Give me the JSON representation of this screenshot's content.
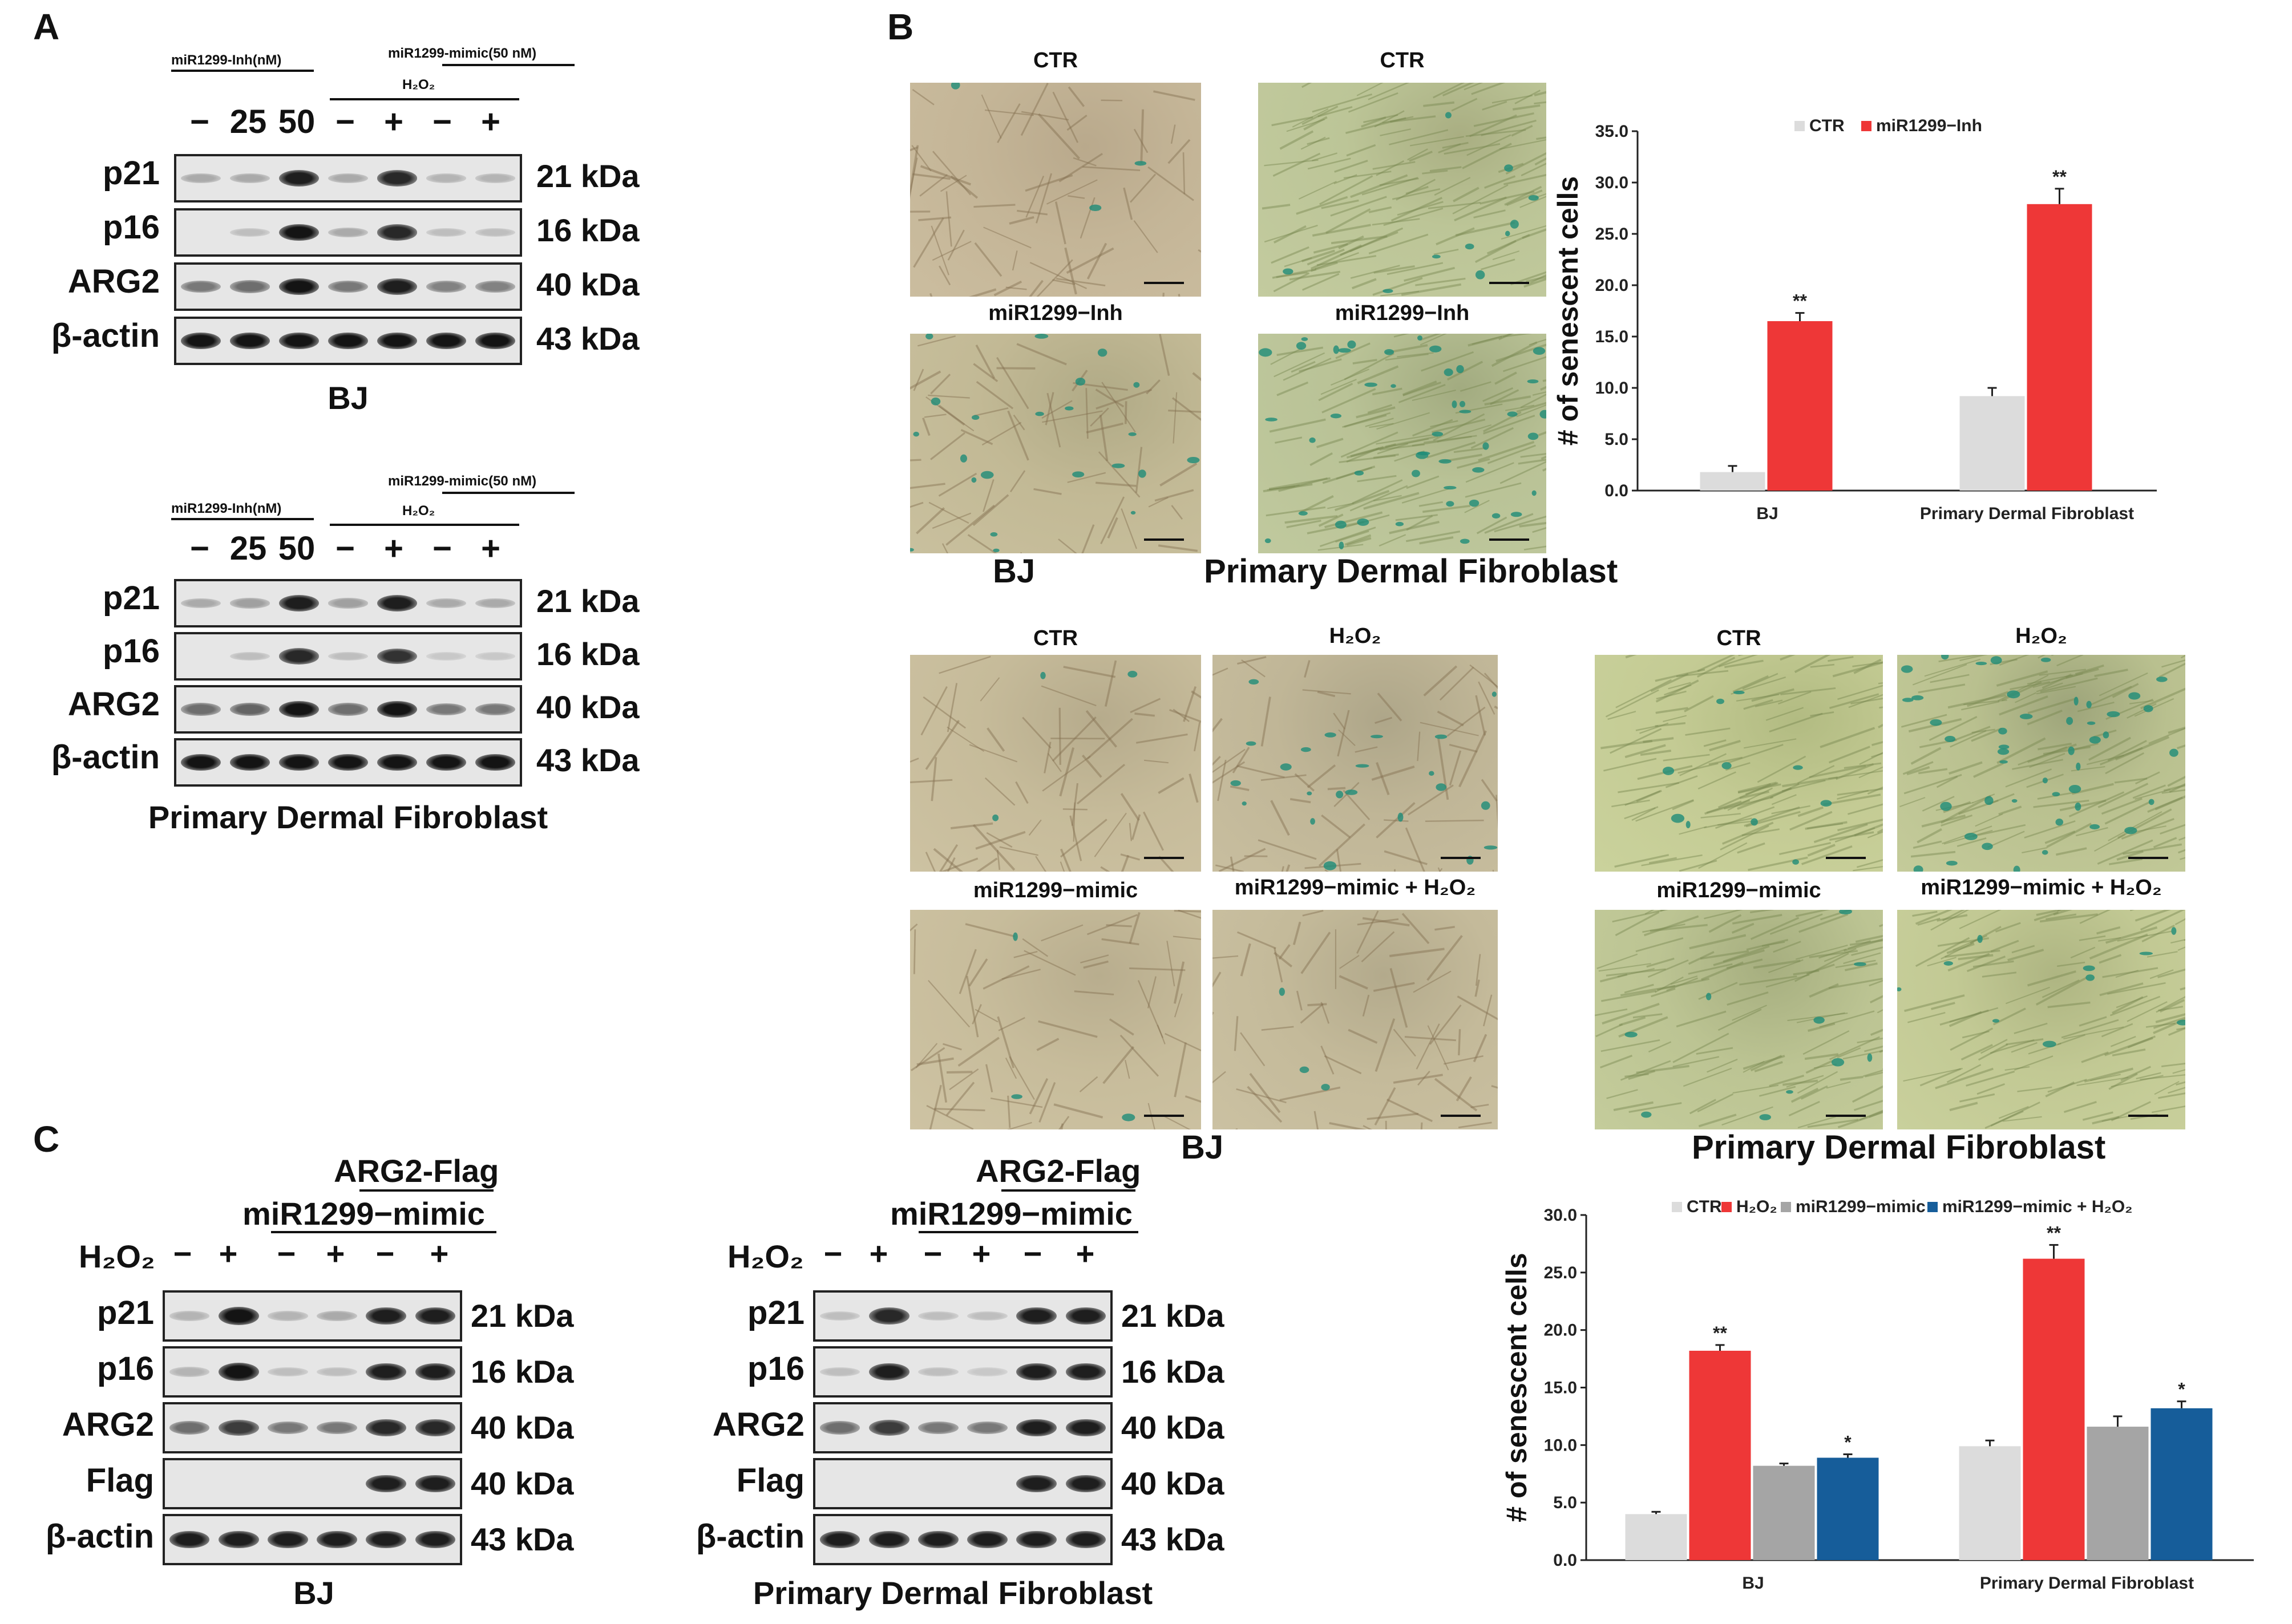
{
  "panels": {
    "a": "A",
    "b": "B",
    "c": "C"
  },
  "panelA": {
    "inh_label": "miR1299-Inh(nM)",
    "mimic_label": "miR1299-mimic(50 nM)",
    "h2o2_label": "H₂O₂",
    "lane_labels": [
      "−",
      "25",
      "50",
      "−",
      "+",
      "−",
      "+"
    ],
    "proteins": [
      {
        "name": "p21",
        "kda": "21 kDa"
      },
      {
        "name": "p16",
        "kda": "16 kDa"
      },
      {
        "name": "ARG2",
        "kda": "40 kDa"
      },
      {
        "name": "β-actin",
        "kda": "43 kDa"
      }
    ],
    "cell_lines": [
      "BJ",
      "Primary Dermal Fibroblast"
    ],
    "band_intensity": {
      "BJ": [
        [
          0.2,
          0.2,
          0.9,
          0.2,
          0.85,
          0.15,
          0.15
        ],
        [
          0.0,
          0.1,
          0.95,
          0.2,
          0.85,
          0.1,
          0.1
        ],
        [
          0.45,
          0.5,
          0.95,
          0.45,
          0.9,
          0.4,
          0.4
        ],
        [
          0.95,
          0.95,
          0.95,
          0.95,
          0.95,
          0.95,
          0.95
        ]
      ],
      "PDF": [
        [
          0.2,
          0.25,
          0.9,
          0.25,
          0.9,
          0.2,
          0.2
        ],
        [
          0.0,
          0.1,
          0.85,
          0.1,
          0.8,
          0.05,
          0.05
        ],
        [
          0.5,
          0.55,
          0.95,
          0.5,
          0.95,
          0.45,
          0.45
        ],
        [
          0.95,
          0.95,
          0.95,
          0.95,
          0.95,
          0.95,
          0.95
        ]
      ]
    }
  },
  "panelB": {
    "top_labels": [
      "CTR",
      "CTR",
      "miR1299−Inh",
      "miR1299−Inh"
    ],
    "top_captions": [
      "BJ",
      "Primary Dermal Fibroblast"
    ],
    "bottom_labels_bj": [
      "CTR",
      "H₂O₂",
      "miR1299−mimic",
      "miR1299−mimic + H₂O₂"
    ],
    "bottom_labels_pdf": [
      "CTR",
      "H₂O₂",
      "miR1299−mimic",
      "miR1299−mimic + H₂O₂"
    ],
    "bottom_captions": [
      "BJ",
      "Primary Dermal Fibroblast"
    ]
  },
  "panelC": {
    "flag_label": "ARG2-Flag",
    "mimic_label": "miR1299−mimic",
    "h2o2_label": "H₂O₂",
    "lane_labels": [
      "−",
      "+",
      "−",
      "+",
      "−",
      "+"
    ],
    "proteins": [
      {
        "name": "p21",
        "kda": "21 kDa"
      },
      {
        "name": "p16",
        "kda": "16 kDa"
      },
      {
        "name": "ARG2",
        "kda": "40 kDa"
      },
      {
        "name": "Flag",
        "kda": "40 kDa"
      },
      {
        "name": "β-actin",
        "kda": "43 kDa"
      }
    ],
    "cell_lines": [
      "BJ",
      "Primary Dermal Fibroblast"
    ],
    "band_intensity": {
      "BJ": [
        [
          0.15,
          0.95,
          0.15,
          0.2,
          0.9,
          0.9
        ],
        [
          0.15,
          0.95,
          0.1,
          0.1,
          0.9,
          0.9
        ],
        [
          0.5,
          0.75,
          0.45,
          0.45,
          0.85,
          0.85
        ],
        [
          0.0,
          0.0,
          0.0,
          0.0,
          0.9,
          0.9
        ],
        [
          0.9,
          0.9,
          0.9,
          0.9,
          0.9,
          0.9
        ]
      ],
      "PDF": [
        [
          0.1,
          0.85,
          0.1,
          0.1,
          0.9,
          0.9
        ],
        [
          0.1,
          0.9,
          0.1,
          0.05,
          0.9,
          0.9
        ],
        [
          0.5,
          0.75,
          0.45,
          0.45,
          0.9,
          0.9
        ],
        [
          0.0,
          0.0,
          0.0,
          0.0,
          0.9,
          0.9
        ],
        [
          0.9,
          0.9,
          0.9,
          0.9,
          0.9,
          0.9
        ]
      ]
    }
  },
  "chart_data": [
    {
      "type": "bar",
      "ylabel": "# of senescent cells",
      "categories": [
        "BJ",
        "Primary Dermal Fibroblast"
      ],
      "ylim": [
        0,
        35
      ],
      "yticks": [
        "0.0",
        "5.0",
        "10.0",
        "15.0",
        "20.0",
        "25.0",
        "30.0",
        "35.0"
      ],
      "series": [
        {
          "name": "CTR",
          "color": "#dcdcdc",
          "values": [
            1.8,
            9.2
          ],
          "errors": [
            0.6,
            0.8
          ],
          "sig": [
            "",
            ""
          ]
        },
        {
          "name": "miR1299−Inh",
          "color": "#ee3737",
          "values": [
            16.5,
            27.9
          ],
          "errors": [
            0.8,
            1.5
          ],
          "sig": [
            "**",
            "**"
          ]
        }
      ],
      "legend": "top"
    },
    {
      "type": "bar",
      "ylabel": "# of senescent cells",
      "categories": [
        "BJ",
        "Primary Dermal Fibroblast"
      ],
      "ylim": [
        0,
        30
      ],
      "yticks": [
        "0.0",
        "5.0",
        "10.0",
        "15.0",
        "20.0",
        "25.0",
        "30.0"
      ],
      "series": [
        {
          "name": "CTR",
          "color": "#dcdcdc",
          "values": [
            4.0,
            9.9
          ],
          "errors": [
            0.2,
            0.5
          ],
          "sig": [
            "",
            ""
          ]
        },
        {
          "name": "H₂O₂",
          "color": "#ee3737",
          "values": [
            18.2,
            26.2
          ],
          "errors": [
            0.5,
            1.2
          ],
          "sig": [
            "**",
            "**"
          ]
        },
        {
          "name": "miR1299−mimic",
          "color": "#a5a5a5",
          "values": [
            8.2,
            11.6
          ],
          "errors": [
            0.2,
            0.9
          ],
          "sig": [
            "",
            ""
          ]
        },
        {
          "name": "miR1299−mimic + H₂O₂",
          "color": "#165d9a",
          "values": [
            8.9,
            13.2
          ],
          "errors": [
            0.3,
            0.6
          ],
          "sig": [
            "*",
            "*"
          ]
        }
      ],
      "legend": "top"
    }
  ]
}
